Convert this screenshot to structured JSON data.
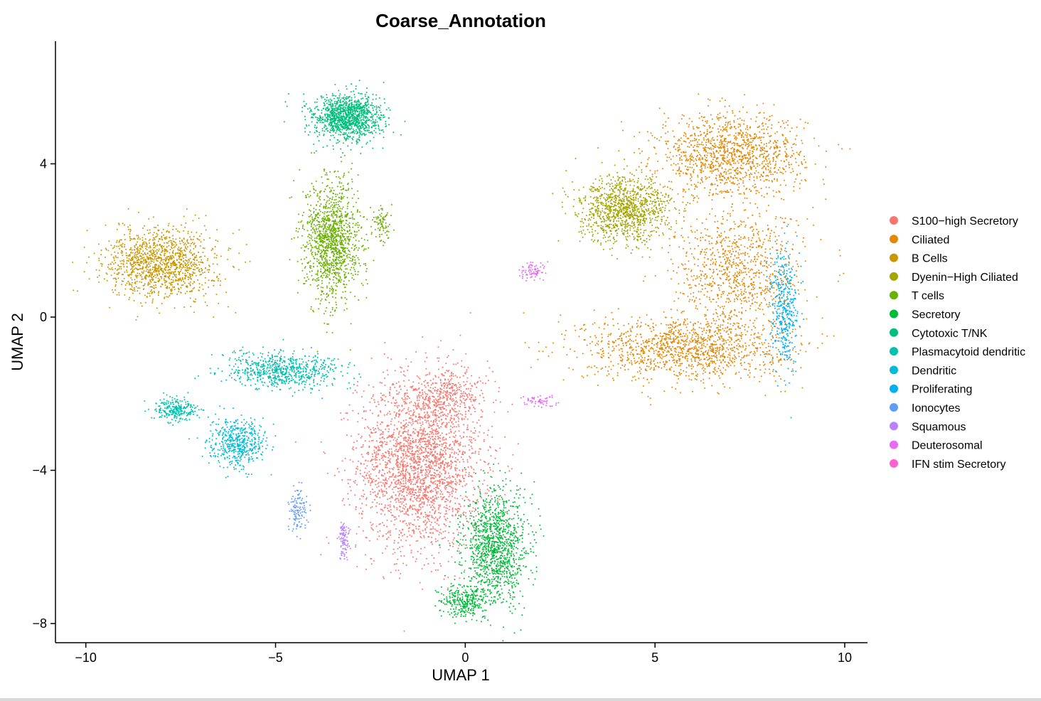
{
  "chart_data": {
    "type": "scatter",
    "title": "Coarse_Annotation",
    "xlabel": "UMAP 1",
    "ylabel": "UMAP 2",
    "xlim": [
      -10.8,
      10.6
    ],
    "ylim": [
      -8.5,
      7.2
    ],
    "xticks": [
      -10,
      -5,
      0,
      5,
      10
    ],
    "xtick_labels": [
      "−10",
      "−5",
      "0",
      "5",
      "10"
    ],
    "yticks": [
      4,
      0,
      -4,
      -8
    ],
    "ytick_labels": [
      "4",
      "0",
      "−4",
      "−8"
    ],
    "grid": false,
    "legend_position": "right",
    "series": [
      {
        "name": "S100−high Secretory",
        "color": "#F8766D",
        "clusters": [
          {
            "cx": -1.2,
            "cy": -3.8,
            "sx": 1.35,
            "sy": 1.9,
            "n": 2600
          },
          {
            "cx": -0.4,
            "cy": -2.0,
            "sx": 0.9,
            "sy": 0.5,
            "n": 300
          }
        ]
      },
      {
        "name": "Ciliated",
        "color": "#E58700",
        "clusters": [
          {
            "cx": 7.0,
            "cy": 4.2,
            "sx": 1.6,
            "sy": 0.9,
            "n": 1300
          },
          {
            "cx": 5.8,
            "cy": -0.8,
            "sx": 2.2,
            "sy": 0.7,
            "n": 1300
          },
          {
            "cx": 7.2,
            "cy": 1.2,
            "sx": 1.4,
            "sy": 1.3,
            "n": 900
          }
        ]
      },
      {
        "name": "B Cells",
        "color": "#C99800",
        "clusters": [
          {
            "cx": -8.0,
            "cy": 1.4,
            "sx": 1.2,
            "sy": 0.75,
            "n": 1300
          }
        ]
      },
      {
        "name": "Dyenin−High Ciliated",
        "color": "#A3A500",
        "clusters": [
          {
            "cx": 4.2,
            "cy": 2.8,
            "sx": 1.0,
            "sy": 0.7,
            "n": 1100
          }
        ]
      },
      {
        "name": "T cells",
        "color": "#6BB100",
        "clusters": [
          {
            "cx": -3.5,
            "cy": 2.0,
            "sx": 0.6,
            "sy": 1.3,
            "n": 1300
          },
          {
            "cx": -2.2,
            "cy": 2.4,
            "sx": 0.2,
            "sy": 0.4,
            "n": 80
          }
        ]
      },
      {
        "name": "Secretory",
        "color": "#00BA38",
        "clusters": [
          {
            "cx": 0.8,
            "cy": -6.0,
            "sx": 0.7,
            "sy": 1.2,
            "n": 1200
          },
          {
            "cx": 0.0,
            "cy": -7.4,
            "sx": 0.5,
            "sy": 0.35,
            "n": 300
          }
        ]
      },
      {
        "name": "Cytotoxic T/NK",
        "color": "#00BF7D",
        "clusters": [
          {
            "cx": -3.1,
            "cy": 5.2,
            "sx": 0.75,
            "sy": 0.5,
            "n": 1200
          }
        ]
      },
      {
        "name": "Plasmacytoid dendritic",
        "color": "#00C0AF",
        "clusters": [
          {
            "cx": -4.8,
            "cy": -1.4,
            "sx": 1.3,
            "sy": 0.4,
            "n": 700
          },
          {
            "cx": -7.6,
            "cy": -2.4,
            "sx": 0.5,
            "sy": 0.25,
            "n": 250
          }
        ]
      },
      {
        "name": "Dendritic",
        "color": "#00BCD8",
        "clusters": [
          {
            "cx": -6.0,
            "cy": -3.3,
            "sx": 0.6,
            "sy": 0.5,
            "n": 500
          }
        ]
      },
      {
        "name": "Proliferating",
        "color": "#00B0F6",
        "clusters": [
          {
            "cx": 8.4,
            "cy": 0.2,
            "sx": 0.3,
            "sy": 1.3,
            "n": 400
          }
        ]
      },
      {
        "name": "Ionocytes",
        "color": "#619CFF",
        "clusters": [
          {
            "cx": -4.4,
            "cy": -5.0,
            "sx": 0.2,
            "sy": 0.5,
            "n": 120
          }
        ]
      },
      {
        "name": "Squamous",
        "color": "#B983FF",
        "clusters": [
          {
            "cx": -3.2,
            "cy": -5.8,
            "sx": 0.12,
            "sy": 0.4,
            "n": 100
          }
        ]
      },
      {
        "name": "Deuterosomal",
        "color": "#E76BF3",
        "clusters": [
          {
            "cx": 1.9,
            "cy": -2.2,
            "sx": 0.4,
            "sy": 0.15,
            "n": 60
          },
          {
            "cx": 1.8,
            "cy": 1.2,
            "sx": 0.3,
            "sy": 0.2,
            "n": 80
          }
        ]
      },
      {
        "name": "IFN stim Secretory",
        "color": "#FD61D1",
        "clusters": []
      }
    ]
  }
}
